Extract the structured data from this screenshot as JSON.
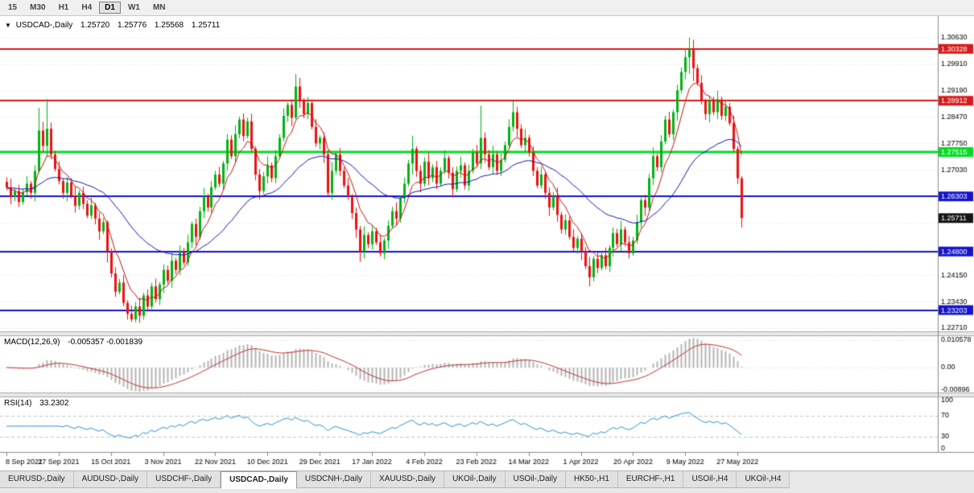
{
  "toolbar": {
    "timeframes": [
      "15",
      "M30",
      "H1",
      "H4",
      "D1",
      "W1",
      "MN"
    ],
    "active": "D1"
  },
  "chart_header": {
    "dropdown_icon": "▼",
    "symbol": "USDCAD-,Daily",
    "open": "1.25720",
    "high": "1.25776",
    "low": "1.25568",
    "close": "1.25711"
  },
  "indicator_labels": {
    "macd": {
      "name": "MACD(12,26,9)",
      "values": "-0.005357 -0.001839"
    },
    "rsi": {
      "name": "RSI(14)",
      "value": "33.2302"
    }
  },
  "tabs": {
    "items": [
      "EURUSD-,Daily",
      "AUDUSD-,Daily",
      "USDCHF-,Daily",
      "USDCAD-,Daily",
      "USDCNH-,Daily",
      "XAUUSD-,Daily",
      "UKOil-,Daily",
      "USOil-,Daily",
      "HK50-,H1",
      "EURCHF-,H1",
      "USOil-,H4",
      "UKOil-,H4"
    ],
    "active_index": 3
  },
  "chart_data": {
    "type": "candlestick",
    "symbol": "USDCAD",
    "timeframe": "Daily",
    "current_bar": {
      "open": 1.2572,
      "high": 1.25776,
      "low": 1.25568,
      "close": 1.25711
    },
    "y_range": [
      1.2271,
      1.3063
    ],
    "y_axis_labels": [
      "1.30630",
      "1.29910",
      "1.29190",
      "1.28470",
      "1.27750",
      "1.27030",
      "1.26310",
      "1.25590",
      "1.24870",
      "1.24150",
      "1.23430",
      "1.22710"
    ],
    "x_axis_labels": [
      {
        "text": "8 Sep 2021",
        "index": 0
      },
      {
        "text": "27 Sep 2021",
        "index": 13
      },
      {
        "text": "15 Oct 2021",
        "index": 26
      },
      {
        "text": "3 Nov 2021",
        "index": 39
      },
      {
        "text": "22 Nov 2021",
        "index": 52
      },
      {
        "text": "10 Dec 2021",
        "index": 65
      },
      {
        "text": "29 Dec 2021",
        "index": 78
      },
      {
        "text": "17 Jan 2022",
        "index": 91
      },
      {
        "text": "4 Feb 2022",
        "index": 104
      },
      {
        "text": "23 Feb 2022",
        "index": 117
      },
      {
        "text": "14 Mar 2022",
        "index": 130
      },
      {
        "text": "1 Apr 2022",
        "index": 143
      },
      {
        "text": "20 Apr 2022",
        "index": 156
      },
      {
        "text": "9 May 2022",
        "index": 169
      },
      {
        "text": "27 May 2022",
        "index": 182
      }
    ],
    "open_first": 1.267,
    "closes": [
      1.2655,
      1.2628,
      1.2645,
      1.2615,
      1.2642,
      1.2665,
      1.264,
      1.27,
      1.281,
      1.2768,
      1.2815,
      1.2745,
      1.2705,
      1.2672,
      1.264,
      1.2668,
      1.2633,
      1.2605,
      1.264,
      1.261,
      1.2578,
      1.2606,
      1.257,
      1.2535,
      1.256,
      1.248,
      1.242,
      1.237,
      1.2395,
      1.234,
      1.231,
      1.2295,
      1.233,
      1.2305,
      1.236,
      1.233,
      1.2385,
      1.235,
      1.239,
      1.243,
      1.24,
      1.2455,
      1.243,
      1.248,
      1.245,
      1.2505,
      1.2555,
      1.252,
      1.259,
      1.263,
      1.26,
      1.2655,
      1.269,
      1.2665,
      1.272,
      1.2785,
      1.274,
      1.28,
      1.284,
      1.2795,
      1.2835,
      1.276,
      1.269,
      1.2645,
      1.2685,
      1.2715,
      1.268,
      1.274,
      1.279,
      1.285,
      1.288,
      1.2845,
      1.293,
      1.289,
      1.2855,
      1.2885,
      1.282,
      1.2775,
      1.279,
      1.2745,
      1.264,
      1.27,
      1.2745,
      1.27,
      1.266,
      1.263,
      1.2585,
      1.254,
      1.248,
      1.2525,
      1.25,
      1.2535,
      1.2505,
      1.2475,
      1.251,
      1.255,
      1.259,
      1.257,
      1.2625,
      1.2665,
      1.272,
      1.276,
      1.27,
      1.2665,
      1.2725,
      1.268,
      1.271,
      1.2665,
      1.27,
      1.2735,
      1.2695,
      1.265,
      1.27,
      1.2715,
      1.266,
      1.27,
      1.275,
      1.272,
      1.279,
      1.2745,
      1.271,
      1.2745,
      1.27,
      1.273,
      1.277,
      1.282,
      1.286,
      1.2815,
      1.277,
      1.279,
      1.275,
      1.27,
      1.266,
      1.269,
      1.264,
      1.26,
      1.263,
      1.258,
      1.254,
      1.2565,
      1.252,
      1.249,
      1.2515,
      1.248,
      1.244,
      1.241,
      1.246,
      1.2435,
      1.247,
      1.244,
      1.249,
      1.253,
      1.25,
      1.254,
      1.2505,
      1.2475,
      1.251,
      1.256,
      1.262,
      1.26,
      1.268,
      1.274,
      1.271,
      1.278,
      1.284,
      1.28,
      1.286,
      1.292,
      1.297,
      1.301,
      1.303,
      1.298,
      1.294,
      1.289,
      1.2855,
      1.289,
      1.286,
      1.2895,
      1.285,
      1.2875,
      1.283,
      1.276,
      1.268,
      1.25711
    ],
    "wick_up_pattern": [
      0.0012,
      0.0024,
      0.0008,
      0.0017,
      0.001,
      0.0021,
      0.0007,
      0.0015
    ],
    "wick_down_pattern": [
      0.0009,
      0.0016,
      0.0023,
      0.0008,
      0.0019,
      0.0011,
      0.0014,
      0.0007
    ],
    "wick_overrides": {
      "8": [
        1.2872,
        1.2695
      ],
      "10": [
        1.2896,
        1.2738
      ],
      "25": [
        1.2565,
        1.245
      ],
      "31": [
        1.2332,
        1.2288
      ],
      "55": [
        1.28,
        1.27
      ],
      "72": [
        1.2964,
        1.284
      ],
      "88": [
        1.255,
        1.2452
      ],
      "101": [
        1.2796,
        1.269
      ],
      "118": [
        1.2878,
        1.2705
      ],
      "126": [
        1.289,
        1.2808
      ],
      "145": [
        1.2465,
        1.2385
      ],
      "170": [
        1.3063,
        1.2965
      ],
      "171": [
        1.3058,
        1.2945
      ],
      "183": [
        1.2685,
        1.2545
      ]
    },
    "horizontal_lines": [
      {
        "price": 1.30328,
        "label": "1.30328",
        "color": "#d81a1a",
        "width": 2
      },
      {
        "price": 1.28912,
        "label": "1.28912",
        "color": "#d81a1a",
        "width": 2
      },
      {
        "price": 1.27515,
        "label": "1.27515",
        "color": "#00dd22",
        "width": 3
      },
      {
        "price": 1.26303,
        "label": "1.26303",
        "color": "#1414cc",
        "width": 2
      },
      {
        "price": 1.248,
        "label": "1.24800",
        "color": "#1414cc",
        "width": 2
      },
      {
        "price": 1.23203,
        "label": "1.23203",
        "color": "#1414cc",
        "width": 2
      }
    ],
    "current_price": {
      "value": 1.25711,
      "label": "1.25711",
      "badge_color": "#161616"
    },
    "moving_averages": [
      {
        "period": 7,
        "color": "#c41414"
      },
      {
        "period": 34,
        "color": "#1414b4"
      }
    ],
    "candle_colors": {
      "bull": "#00b312",
      "bear": "#ef1010"
    },
    "macd": {
      "fast": 12,
      "slow": 26,
      "signal_period": 9,
      "main_value": -0.005357,
      "signal_value": -0.001839,
      "hist_color": "#b4b4b4",
      "signal_color": "#c03030",
      "axis_labels": [
        "0.010578",
        "0.00",
        "-0.00896"
      ],
      "axis_values": [
        0.010578,
        0,
        -0.00896
      ]
    },
    "rsi": {
      "period": 14,
      "value": 33.2302,
      "color": "#2f8fd0",
      "levels": [
        70,
        30
      ],
      "axis_labels": [
        "100",
        "70",
        "30",
        "0"
      ],
      "axis_values": [
        100,
        70,
        30,
        0
      ]
    }
  }
}
